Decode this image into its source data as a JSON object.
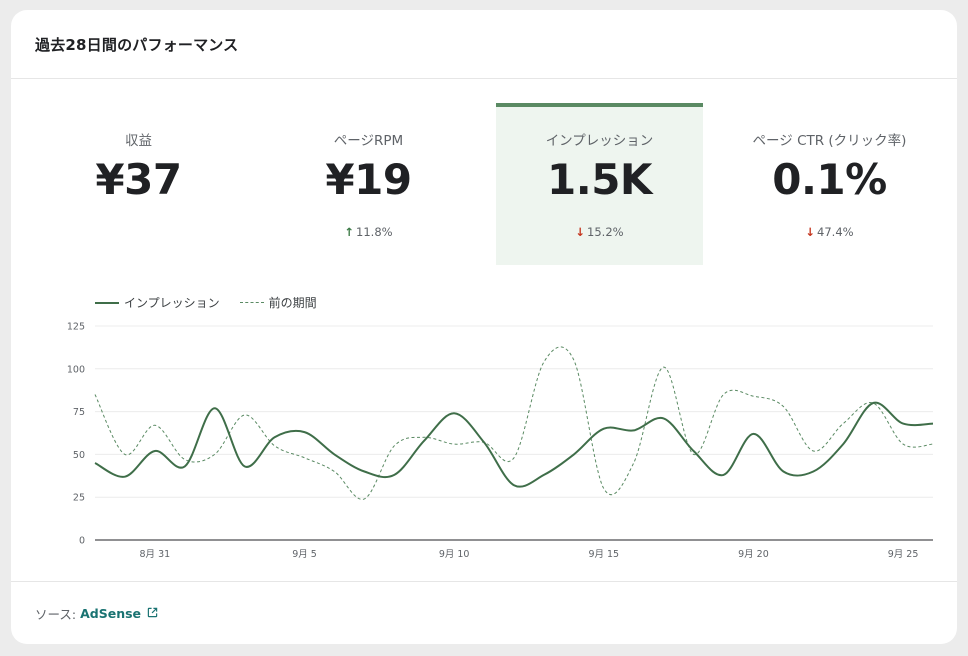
{
  "card": {
    "title": "過去28日間のパフォーマンス"
  },
  "metrics": [
    {
      "label": "収益",
      "value": "¥37",
      "change": "",
      "direction": ""
    },
    {
      "label": "ページRPM",
      "value": "¥19",
      "change": "11.8%",
      "direction": "up"
    },
    {
      "label": "インプレッション",
      "value": "1.5K",
      "change": "15.2%",
      "direction": "down",
      "selected": true
    },
    {
      "label": "ページ CTR (クリック率)",
      "value": "0.1%",
      "change": "47.4%",
      "direction": "down"
    }
  ],
  "legend": {
    "current": "インプレッション",
    "previous": "前の期間"
  },
  "chart_data": {
    "type": "line",
    "x": [
      "8/29",
      "8/30",
      "8/31",
      "9/1",
      "9/2",
      "9/3",
      "9/4",
      "9/5",
      "9/6",
      "9/7",
      "9/8",
      "9/9",
      "9/10",
      "9/11",
      "9/12",
      "9/13",
      "9/14",
      "9/15",
      "9/16",
      "9/17",
      "9/18",
      "9/19",
      "9/20",
      "9/21",
      "9/22",
      "9/23",
      "9/24",
      "9/25",
      "9/26"
    ],
    "x_ticks": [
      "8月 31",
      "9月 5",
      "9月 10",
      "9月 15",
      "9月 20",
      "9月 25"
    ],
    "y_ticks": [
      "0",
      "25",
      "50",
      "75",
      "100",
      "125"
    ],
    "ylim": [
      0,
      125
    ],
    "grid": true,
    "legend_position": "top-left",
    "series": [
      {
        "name": "インプレッション",
        "style": "solid",
        "color": "#3f6e49",
        "values": [
          45,
          37,
          52,
          43,
          77,
          43,
          60,
          63,
          50,
          40,
          38,
          58,
          74,
          57,
          32,
          38,
          50,
          65,
          64,
          71,
          52,
          38,
          62,
          40,
          40,
          56,
          80,
          68,
          68
        ]
      },
      {
        "name": "前の期間",
        "style": "dashed",
        "color": "#5a8a63",
        "values": [
          85,
          50,
          67,
          47,
          50,
          73,
          55,
          48,
          40,
          24,
          55,
          60,
          56,
          57,
          48,
          104,
          105,
          30,
          45,
          101,
          50,
          85,
          84,
          78,
          52,
          68,
          80,
          56,
          56
        ]
      }
    ]
  },
  "footer": {
    "source_label": "ソース:",
    "source_link": "AdSense"
  },
  "colors": {
    "accent": "#3f6e49",
    "up": "#3c7a46",
    "down": "#c5361f",
    "link": "#1a7372",
    "selected_bg": "#eef5ef"
  }
}
